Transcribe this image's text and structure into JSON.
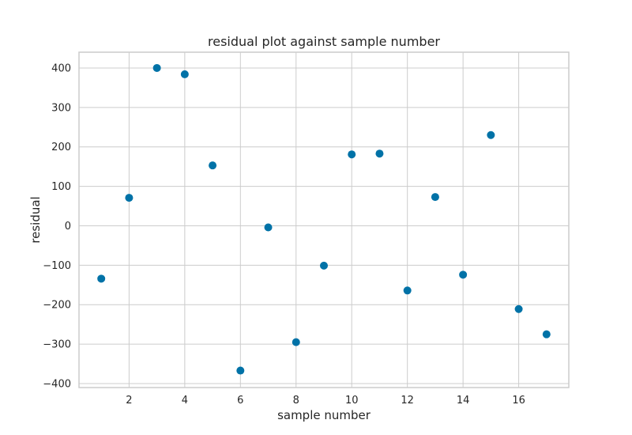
{
  "chart_data": {
    "type": "scatter",
    "title": "residual plot against sample number",
    "xlabel": "sample number",
    "ylabel": "residual",
    "xlim": [
      0.2,
      17.8
    ],
    "ylim": [
      -410,
      440
    ],
    "xticks": [
      2,
      4,
      6,
      8,
      10,
      12,
      14,
      16
    ],
    "yticks": [
      -400,
      -300,
      -200,
      -100,
      0,
      100,
      200,
      300,
      400
    ],
    "ytick_labels": [
      "−400",
      "−300",
      "−200",
      "−100",
      "0",
      "100",
      "200",
      "300",
      "400"
    ],
    "grid": true,
    "point_color": "#0072a7",
    "x": [
      1,
      2,
      3,
      4,
      5,
      6,
      7,
      8,
      9,
      10,
      11,
      12,
      13,
      14,
      15,
      16,
      17
    ],
    "y": [
      -134,
      71,
      400,
      384,
      153,
      -367,
      -4,
      -295,
      -101,
      181,
      183,
      -164,
      73,
      -124,
      230,
      -211,
      -275
    ]
  }
}
